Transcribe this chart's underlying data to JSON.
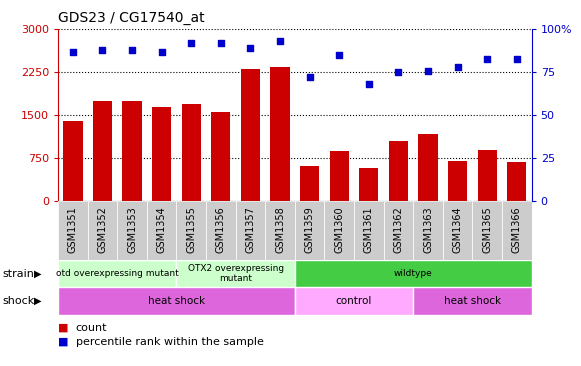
{
  "title": "GDS23 / CG17540_at",
  "categories": [
    "GSM1351",
    "GSM1352",
    "GSM1353",
    "GSM1354",
    "GSM1355",
    "GSM1356",
    "GSM1357",
    "GSM1358",
    "GSM1359",
    "GSM1360",
    "GSM1361",
    "GSM1362",
    "GSM1363",
    "GSM1364",
    "GSM1365",
    "GSM1366"
  ],
  "bar_values": [
    1400,
    1750,
    1750,
    1650,
    1700,
    1550,
    2300,
    2350,
    620,
    880,
    580,
    1050,
    1180,
    700,
    900,
    680
  ],
  "dot_values": [
    87,
    88,
    88,
    87,
    92,
    92,
    89,
    93,
    72,
    85,
    68,
    75,
    76,
    78,
    83,
    83
  ],
  "bar_color": "#cc0000",
  "dot_color": "#0000cc",
  "ylim_left": [
    0,
    3000
  ],
  "ylim_right": [
    0,
    100
  ],
  "yticks_left": [
    0,
    750,
    1500,
    2250,
    3000
  ],
  "yticks_right": [
    0,
    25,
    50,
    75,
    100
  ],
  "strain_groups": [
    {
      "label": "otd overexpressing mutant",
      "start": 0,
      "end": 4,
      "color": "#ccffcc"
    },
    {
      "label": "OTX2 overexpressing\nmutant",
      "start": 4,
      "end": 8,
      "color": "#ccffcc"
    },
    {
      "label": "wildtype",
      "start": 8,
      "end": 16,
      "color": "#44cc44"
    }
  ],
  "shock_groups": [
    {
      "label": "heat shock",
      "start": 0,
      "end": 8,
      "color": "#dd66dd"
    },
    {
      "label": "control",
      "start": 8,
      "end": 12,
      "color": "#ffaaff"
    },
    {
      "label": "heat shock",
      "start": 12,
      "end": 16,
      "color": "#dd66dd"
    }
  ],
  "strain_label": "strain",
  "shock_label": "shock",
  "legend_bar_label": "count",
  "legend_dot_label": "percentile rank within the sample",
  "tick_color_left": "#cc0000",
  "tick_color_right": "#0000cc",
  "xlabel_bg_color": "#cccccc",
  "border_color": "#888888"
}
